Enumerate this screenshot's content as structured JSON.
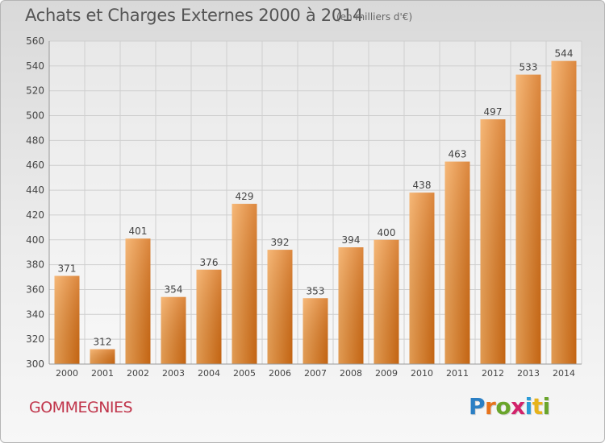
{
  "header": {
    "title": "Achats et Charges Externes 2000 à 2014",
    "subtitle": "(en milliers d'€)"
  },
  "footer": {
    "place": "GOMMEGNIES",
    "logo_letters": [
      "P",
      "r",
      "o",
      "x",
      "i",
      "t",
      "i"
    ],
    "logo_colors": [
      "#2b7fc4",
      "#e7731b",
      "#6aa52b",
      "#d2236b",
      "#2b9bd6",
      "#e7b31b",
      "#6aa52b"
    ]
  },
  "colors": {
    "bar_light": "#f4a85a",
    "bar_dark": "#d46d14",
    "grid": "#cfcfcf",
    "axis_text": "#444444"
  },
  "chart_data": {
    "type": "bar",
    "categories": [
      "2000",
      "2001",
      "2002",
      "2003",
      "2004",
      "2005",
      "2006",
      "2007",
      "2008",
      "2009",
      "2010",
      "2011",
      "2012",
      "2013",
      "2014"
    ],
    "values": [
      371,
      312,
      401,
      354,
      376,
      429,
      392,
      353,
      394,
      400,
      438,
      463,
      497,
      533,
      544
    ],
    "title": "Achats et Charges Externes 2000 à 2014",
    "subtitle": "(en milliers d'€)",
    "xlabel": "",
    "ylabel": "",
    "ylim": [
      300,
      560
    ],
    "yticks": [
      300,
      320,
      340,
      360,
      380,
      400,
      420,
      440,
      460,
      480,
      500,
      520,
      540,
      560
    ],
    "grid": true,
    "legend": "none"
  }
}
